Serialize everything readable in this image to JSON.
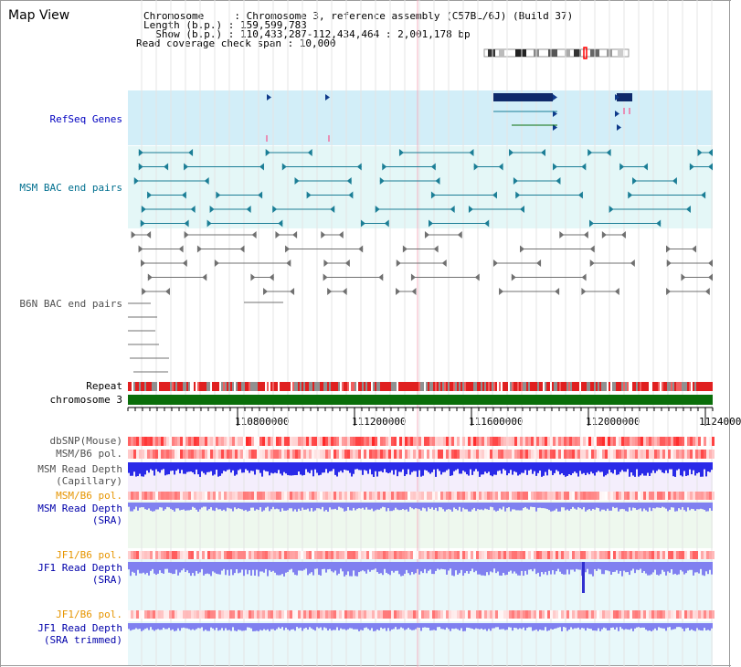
{
  "app": {
    "title": "Map View"
  },
  "header": {
    "line1": "Chromosome     : Chromosome 3, reference assembly (C57BL/6J) (Build 37)",
    "line2": "Length (b.p.) : 159,599,783",
    "line3": "  Show (b.p.) : 110,433,287-112,434,464 : 2,001,178 bp",
    "line4": "Read coverage check span : 10,000"
  },
  "tracks": {
    "refseq": "RefSeq Genes",
    "msm_bac": "MSM BAC end pairs",
    "b6n_bac": "B6N BAC end pairs",
    "repeat": "Repeat",
    "chrom": "chromosome 3",
    "dbsnp": "dbSNP(Mouse)",
    "msm_b6_pol": "MSM/B6 pol.",
    "msm_depth_cap_1": "MSM Read Depth",
    "msm_depth_cap_2": "(Capillary)",
    "msm_b6_pol2": "MSM/B6 pol.",
    "msm_depth_sra_1": "MSM Read Depth",
    "msm_depth_sra_2": "(SRA)",
    "jf1_pol": "JF1/B6 pol.",
    "jf1_depth_1": "JF1 Read Depth",
    "jf1_depth_2": "(SRA)",
    "jf1_pol2": "JF1/B6 pol.",
    "jf1_trim_1": "JF1 Read Depth",
    "jf1_trim_2": "(SRA trimmed)"
  },
  "ruler": {
    "ticks": [
      "110800000",
      "111200000",
      "111600000",
      "112000000",
      "1124000"
    ]
  },
  "colors": {
    "refseq_bg": "#d2eef8",
    "bac_bg": "#e4f7f7",
    "gene": "#0f2a6a",
    "msm_pair": "#1b7e96",
    "b6n_pair": "#707070",
    "chrom_bar": "#0a6e0a",
    "snp": "#ff4040",
    "depth_blue": "#2a2ae8",
    "depth_light": "#8080f0"
  }
}
